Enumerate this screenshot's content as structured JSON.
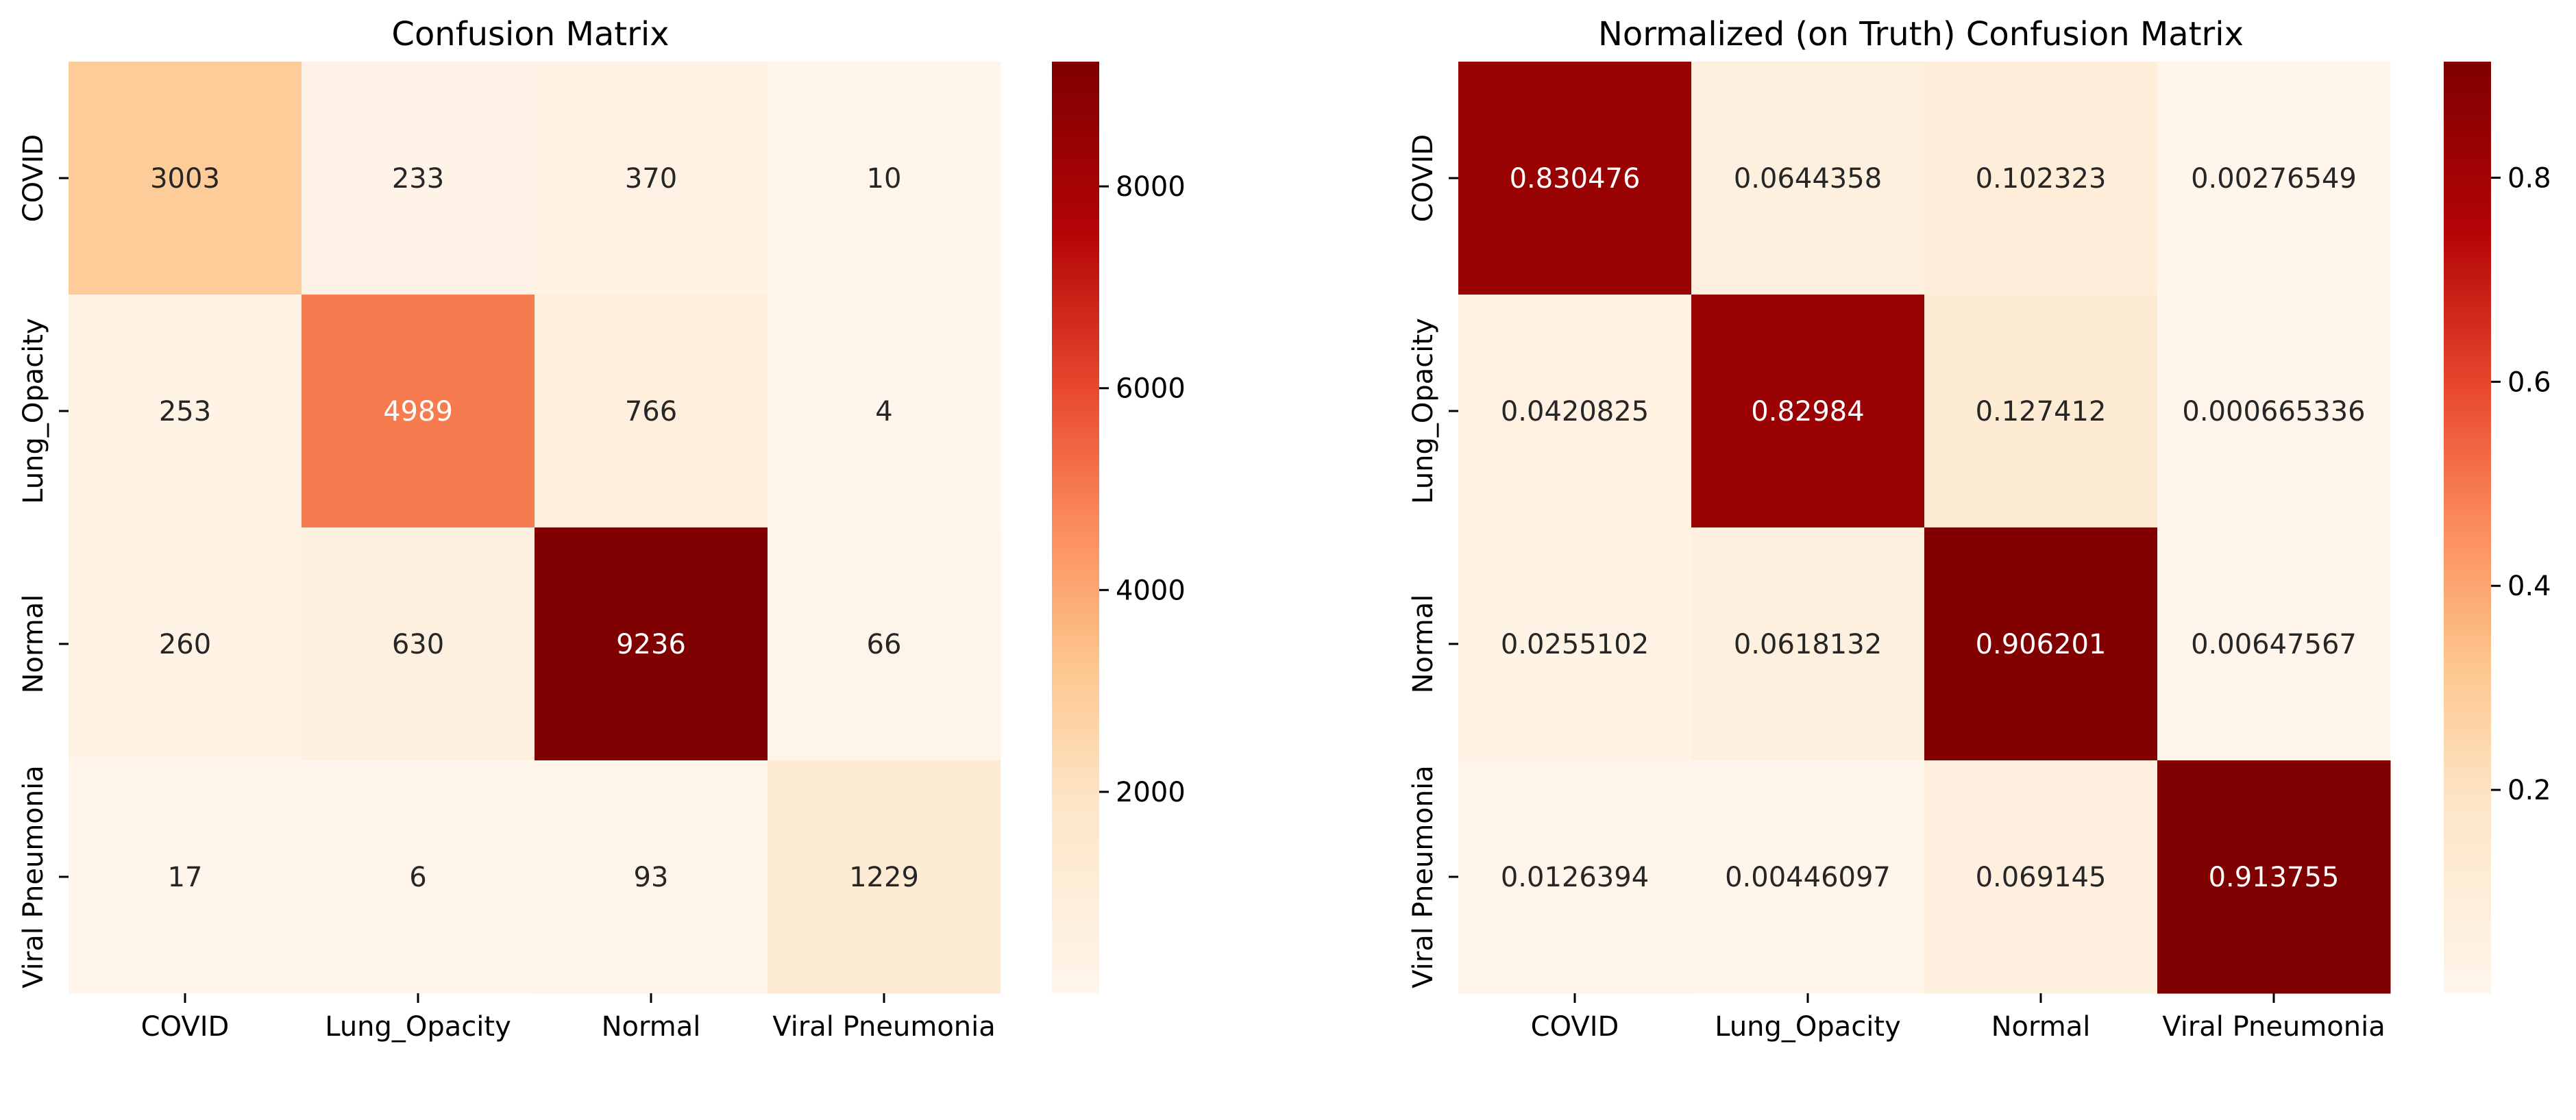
{
  "chart_data": [
    {
      "type": "heatmap",
      "title": "Confusion Matrix",
      "xlabel": "",
      "ylabel": "",
      "x_categories": [
        "COVID",
        "Lung_Opacity",
        "Normal",
        "Viral Pneumonia"
      ],
      "y_categories": [
        "COVID",
        "Lung_Opacity",
        "Normal",
        "Viral Pneumonia"
      ],
      "values": [
        [
          3003,
          233,
          370,
          10
        ],
        [
          253,
          4989,
          766,
          4
        ],
        [
          260,
          630,
          9236,
          66
        ],
        [
          17,
          6,
          93,
          1229
        ]
      ],
      "cell_labels": [
        [
          "3003",
          "233",
          "370",
          "10"
        ],
        [
          "253",
          "4989",
          "766",
          "4"
        ],
        [
          "260",
          "630",
          "9236",
          "66"
        ],
        [
          "17",
          "6",
          "93",
          "1229"
        ]
      ],
      "colormap": "OrRd",
      "colorbar": {
        "min": 4,
        "max": 9236,
        "ticks": [
          2000,
          4000,
          6000,
          8000
        ],
        "tick_labels": [
          "2000",
          "4000",
          "6000",
          "8000"
        ]
      }
    },
    {
      "type": "heatmap",
      "title": "Normalized (on Truth) Confusion Matrix",
      "xlabel": "",
      "ylabel": "",
      "x_categories": [
        "COVID",
        "Lung_Opacity",
        "Normal",
        "Viral Pneumonia"
      ],
      "y_categories": [
        "COVID",
        "Lung_Opacity",
        "Normal",
        "Viral Pneumonia"
      ],
      "values": [
        [
          0.830476,
          0.0644358,
          0.102323,
          0.00276549
        ],
        [
          0.0420825,
          0.82984,
          0.127412,
          0.000665336
        ],
        [
          0.0255102,
          0.0618132,
          0.906201,
          0.00647567
        ],
        [
          0.0126394,
          0.00446097,
          0.069145,
          0.913755
        ]
      ],
      "cell_labels": [
        [
          "0.830476",
          "0.0644358",
          "0.102323",
          "0.00276549"
        ],
        [
          "0.0420825",
          "0.82984",
          "0.127412",
          "0.000665336"
        ],
        [
          "0.0255102",
          "0.0618132",
          "0.906201",
          "0.00647567"
        ],
        [
          "0.0126394",
          "0.00446097",
          "0.069145",
          "0.913755"
        ]
      ],
      "colormap": "OrRd",
      "colorbar": {
        "min": 0.000665336,
        "max": 0.913755,
        "ticks": [
          0.2,
          0.4,
          0.6,
          0.8
        ],
        "tick_labels": [
          "0.2",
          "0.4",
          "0.6",
          "0.8"
        ]
      }
    }
  ]
}
